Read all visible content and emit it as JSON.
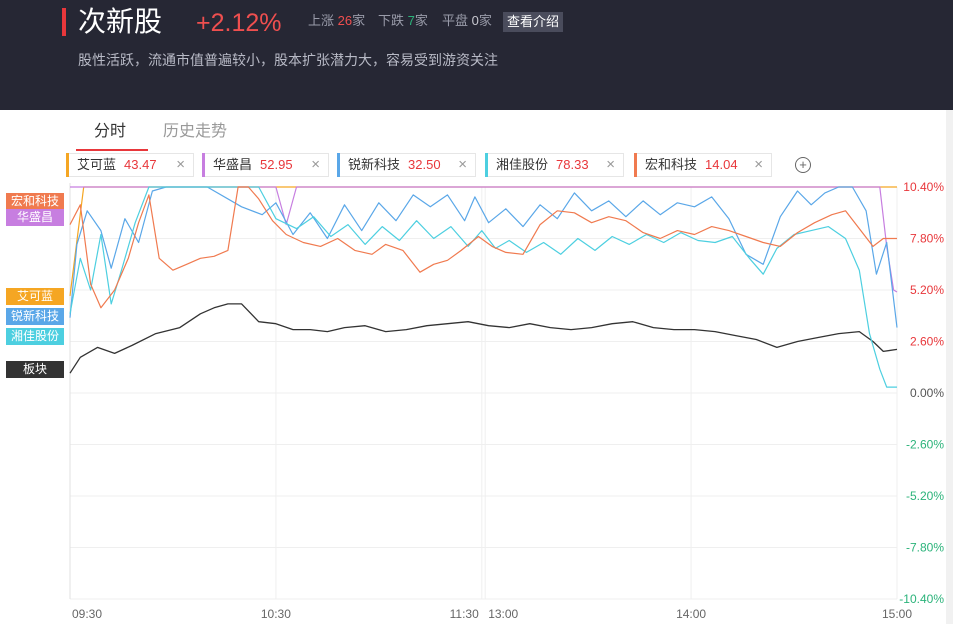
{
  "header": {
    "title": "次新股",
    "change": "+2.12%",
    "up_label": "上涨",
    "up_count": "26",
    "down_label": "下跌",
    "down_count": "7",
    "flat_label": "平盘",
    "flat_count": "0",
    "unit": "家",
    "intro_button": "查看介绍",
    "description": "股性活跃，流通市值普遍较小，股本扩张潜力大，容易受到游资关注"
  },
  "tabs": [
    {
      "label": "分时",
      "active": true
    },
    {
      "label": "历史走势",
      "active": false
    }
  ],
  "stocks": [
    {
      "name": "艾可蓝",
      "price": "43.47",
      "color": "#f5a623"
    },
    {
      "name": "华盛昌",
      "price": "52.95",
      "color": "#c77ee0"
    },
    {
      "name": "锐新科技",
      "price": "32.50",
      "color": "#5aa7e8"
    },
    {
      "name": "湘佳股份",
      "price": "78.33",
      "color": "#4dcfe0"
    },
    {
      "name": "宏和科技",
      "price": "14.04",
      "color": "#f07a4f"
    }
  ],
  "close_glyph": "×",
  "add_glyph": "+",
  "side_labels": [
    {
      "label": "宏和科技",
      "color": "#f07a4f",
      "pct": 9.7
    },
    {
      "label": "华盛昌",
      "color": "#c77ee0",
      "pct": 8.9
    },
    {
      "label": "艾可蓝",
      "color": "#f5a623",
      "pct": 4.9
    },
    {
      "label": "锐新科技",
      "color": "#5aa7e8",
      "pct": 3.9
    },
    {
      "label": "湘佳股份",
      "color": "#4dcfe0",
      "pct": 2.9
    },
    {
      "label": "板块",
      "color": "#333333",
      "pct": 1.2
    }
  ],
  "chart_data": {
    "type": "line",
    "ylim": [
      -10.4,
      10.4
    ],
    "y_ticks": [
      {
        "value": 10.4,
        "label": "10.40%"
      },
      {
        "value": 7.8,
        "label": "7.80%"
      },
      {
        "value": 5.2,
        "label": "5.20%"
      },
      {
        "value": 2.6,
        "label": "2.60%"
      },
      {
        "value": 0.0,
        "label": "0.00%"
      },
      {
        "value": -2.6,
        "label": "-2.60%"
      },
      {
        "value": -5.2,
        "label": "-5.20%"
      },
      {
        "value": -7.8,
        "label": "-7.80%"
      },
      {
        "value": -10.4,
        "label": "-10.40%"
      }
    ],
    "x_ticks": [
      {
        "t": 0,
        "label": "09:30"
      },
      {
        "t": 60,
        "label": "10:30"
      },
      {
        "t": 120,
        "label": "11:30"
      },
      {
        "t": 121,
        "label": "13:00"
      },
      {
        "t": 181,
        "label": "14:00"
      },
      {
        "t": 241,
        "label": "15:00"
      }
    ],
    "x_range": [
      0,
      241
    ],
    "colors": {
      "up": "#e8373b",
      "down": "#2bb37a",
      "zero": "#555555"
    },
    "series": [
      {
        "name": "板块",
        "color": "#333333",
        "points": [
          [
            0,
            1.0
          ],
          [
            3,
            1.8
          ],
          [
            8,
            2.3
          ],
          [
            13,
            2.0
          ],
          [
            18,
            2.4
          ],
          [
            25,
            3.0
          ],
          [
            32,
            3.3
          ],
          [
            38,
            4.0
          ],
          [
            42,
            4.3
          ],
          [
            46,
            4.5
          ],
          [
            50,
            4.5
          ],
          [
            55,
            3.6
          ],
          [
            60,
            3.5
          ],
          [
            65,
            3.2
          ],
          [
            70,
            3.2
          ],
          [
            75,
            3.1
          ],
          [
            80,
            3.3
          ],
          [
            86,
            3.4
          ],
          [
            92,
            3.1
          ],
          [
            98,
            3.2
          ],
          [
            104,
            3.4
          ],
          [
            110,
            3.5
          ],
          [
            116,
            3.6
          ],
          [
            122,
            3.4
          ],
          [
            128,
            3.3
          ],
          [
            134,
            3.5
          ],
          [
            140,
            3.3
          ],
          [
            146,
            3.2
          ],
          [
            152,
            3.3
          ],
          [
            158,
            3.5
          ],
          [
            164,
            3.6
          ],
          [
            170,
            3.3
          ],
          [
            176,
            3.2
          ],
          [
            182,
            3.2
          ],
          [
            188,
            3.1
          ],
          [
            194,
            2.9
          ],
          [
            200,
            2.7
          ],
          [
            206,
            2.3
          ],
          [
            212,
            2.6
          ],
          [
            218,
            2.8
          ],
          [
            224,
            3.0
          ],
          [
            230,
            3.1
          ],
          [
            234,
            2.6
          ],
          [
            237,
            2.1
          ],
          [
            241,
            2.2
          ]
        ]
      },
      {
        "name": "艾可蓝",
        "color": "#f5a623",
        "points": [
          [
            0,
            4.9
          ],
          [
            4,
            10.4
          ],
          [
            241,
            10.4
          ]
        ]
      },
      {
        "name": "华盛昌",
        "color": "#c77ee0",
        "points": [
          [
            0,
            10.4
          ],
          [
            60,
            10.4
          ],
          [
            63,
            8.5
          ],
          [
            66,
            10.4
          ],
          [
            100,
            10.4
          ],
          [
            120,
            10.4
          ],
          [
            236,
            10.4
          ],
          [
            238,
            7.4
          ],
          [
            240,
            5.2
          ],
          [
            241,
            5.1
          ]
        ]
      },
      {
        "name": "锐新科技",
        "color": "#5aa7e8",
        "points": [
          [
            0,
            3.8
          ],
          [
            2,
            7.5
          ],
          [
            5,
            9.2
          ],
          [
            9,
            8.2
          ],
          [
            12,
            6.3
          ],
          [
            16,
            8.8
          ],
          [
            20,
            7.6
          ],
          [
            24,
            10.2
          ],
          [
            28,
            10.4
          ],
          [
            40,
            10.4
          ],
          [
            50,
            9.4
          ],
          [
            56,
            9.0
          ],
          [
            60,
            9.6
          ],
          [
            65,
            8.0
          ],
          [
            70,
            9.1
          ],
          [
            75,
            7.8
          ],
          [
            80,
            9.5
          ],
          [
            85,
            8.2
          ],
          [
            90,
            9.6
          ],
          [
            95,
            8.7
          ],
          [
            100,
            10.0
          ],
          [
            105,
            9.4
          ],
          [
            110,
            10.0
          ],
          [
            115,
            8.7
          ],
          [
            118,
            9.9
          ],
          [
            122,
            8.6
          ],
          [
            127,
            9.3
          ],
          [
            132,
            8.4
          ],
          [
            137,
            9.5
          ],
          [
            142,
            8.8
          ],
          [
            147,
            10.1
          ],
          [
            152,
            9.2
          ],
          [
            157,
            9.7
          ],
          [
            162,
            8.9
          ],
          [
            167,
            9.7
          ],
          [
            172,
            9.0
          ],
          [
            177,
            9.6
          ],
          [
            182,
            9.4
          ],
          [
            187,
            9.9
          ],
          [
            192,
            8.8
          ],
          [
            197,
            7.0
          ],
          [
            202,
            6.5
          ],
          [
            207,
            8.9
          ],
          [
            212,
            10.2
          ],
          [
            216,
            9.5
          ],
          [
            220,
            10.1
          ],
          [
            224,
            10.4
          ],
          [
            228,
            10.4
          ],
          [
            232,
            9.2
          ],
          [
            235,
            6.0
          ],
          [
            238,
            7.6
          ],
          [
            241,
            3.3
          ]
        ]
      },
      {
        "name": "湘佳股份",
        "color": "#4dcfe0",
        "points": [
          [
            0,
            4.0
          ],
          [
            3,
            6.8
          ],
          [
            6,
            5.2
          ],
          [
            9,
            8.0
          ],
          [
            12,
            4.5
          ],
          [
            15,
            6.2
          ],
          [
            19,
            8.6
          ],
          [
            23,
            10.4
          ],
          [
            40,
            10.4
          ],
          [
            55,
            10.4
          ],
          [
            60,
            8.8
          ],
          [
            66,
            8.3
          ],
          [
            71,
            8.9
          ],
          [
            76,
            7.9
          ],
          [
            81,
            8.5
          ],
          [
            86,
            7.5
          ],
          [
            91,
            8.4
          ],
          [
            96,
            7.7
          ],
          [
            101,
            8.7
          ],
          [
            106,
            7.8
          ],
          [
            111,
            8.4
          ],
          [
            116,
            7.4
          ],
          [
            120,
            8.2
          ],
          [
            124,
            7.3
          ],
          [
            128,
            7.7
          ],
          [
            133,
            7.1
          ],
          [
            138,
            7.6
          ],
          [
            143,
            7.0
          ],
          [
            148,
            7.8
          ],
          [
            153,
            7.2
          ],
          [
            158,
            7.9
          ],
          [
            163,
            7.5
          ],
          [
            168,
            8.0
          ],
          [
            173,
            7.6
          ],
          [
            178,
            8.1
          ],
          [
            183,
            7.7
          ],
          [
            188,
            7.6
          ],
          [
            193,
            7.9
          ],
          [
            198,
            6.8
          ],
          [
            202,
            6.0
          ],
          [
            206,
            7.3
          ],
          [
            211,
            8.0
          ],
          [
            216,
            8.2
          ],
          [
            221,
            8.4
          ],
          [
            226,
            7.8
          ],
          [
            230,
            6.2
          ],
          [
            233,
            3.0
          ],
          [
            236,
            1.2
          ],
          [
            238,
            0.3
          ],
          [
            241,
            0.3
          ]
        ]
      },
      {
        "name": "宏和科技",
        "color": "#f07a4f",
        "points": [
          [
            0,
            8.5
          ],
          [
            3,
            9.5
          ],
          [
            6,
            5.5
          ],
          [
            9,
            4.3
          ],
          [
            13,
            5.2
          ],
          [
            17,
            6.8
          ],
          [
            20,
            8.6
          ],
          [
            23,
            10.0
          ],
          [
            26,
            6.8
          ],
          [
            30,
            6.2
          ],
          [
            34,
            6.5
          ],
          [
            38,
            6.8
          ],
          [
            42,
            6.9
          ],
          [
            46,
            7.2
          ],
          [
            49,
            10.4
          ],
          [
            52,
            10.4
          ],
          [
            55,
            9.8
          ],
          [
            59,
            8.7
          ],
          [
            63,
            8.0
          ],
          [
            68,
            7.6
          ],
          [
            73,
            7.4
          ],
          [
            78,
            7.8
          ],
          [
            83,
            7.2
          ],
          [
            88,
            7.0
          ],
          [
            92,
            7.5
          ],
          [
            97,
            7.2
          ],
          [
            102,
            6.1
          ],
          [
            106,
            6.5
          ],
          [
            110,
            6.7
          ],
          [
            114,
            7.2
          ],
          [
            119,
            7.9
          ],
          [
            123,
            7.4
          ],
          [
            127,
            7.1
          ],
          [
            132,
            7.0
          ],
          [
            137,
            8.5
          ],
          [
            142,
            9.2
          ],
          [
            147,
            9.1
          ],
          [
            152,
            8.6
          ],
          [
            157,
            8.9
          ],
          [
            162,
            8.7
          ],
          [
            167,
            8.1
          ],
          [
            172,
            7.8
          ],
          [
            177,
            8.2
          ],
          [
            182,
            8.0
          ],
          [
            187,
            8.4
          ],
          [
            192,
            8.2
          ],
          [
            197,
            7.9
          ],
          [
            202,
            7.6
          ],
          [
            207,
            7.4
          ],
          [
            212,
            8.1
          ],
          [
            217,
            8.6
          ],
          [
            222,
            9.0
          ],
          [
            226,
            9.2
          ],
          [
            230,
            8.3
          ],
          [
            234,
            7.4
          ],
          [
            237,
            7.8
          ],
          [
            241,
            7.8
          ]
        ]
      }
    ]
  }
}
